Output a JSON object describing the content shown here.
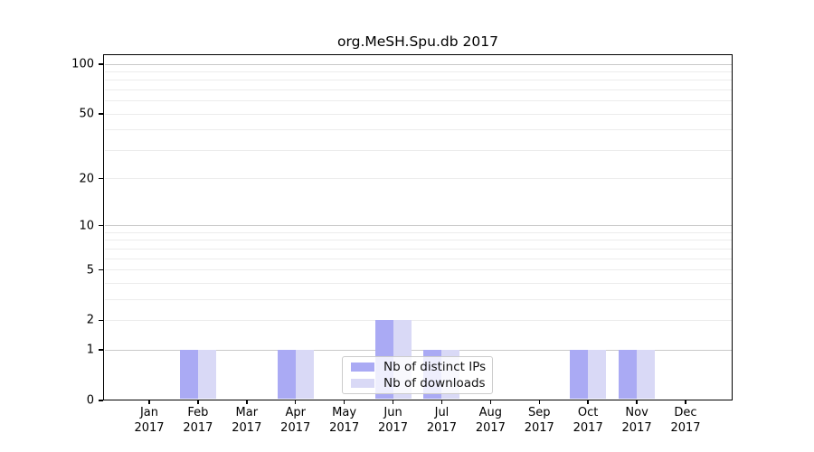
{
  "chart_data": {
    "type": "bar",
    "title": "org.MeSH.Spu.db 2017",
    "categories": [
      "Jan",
      "Feb",
      "Mar",
      "Apr",
      "May",
      "Jun",
      "Jul",
      "Aug",
      "Sep",
      "Oct",
      "Nov",
      "Dec"
    ],
    "x_year_label": "2017",
    "series": [
      {
        "name": "Nb of distinct IPs",
        "color": "#aaaaf4",
        "values": [
          0,
          1,
          0,
          1,
          0,
          2,
          1,
          0,
          0,
          1,
          1,
          0
        ]
      },
      {
        "name": "Nb of downloads",
        "color": "#d9d9f6",
        "values": [
          0,
          1,
          0,
          1,
          0,
          2,
          1,
          0,
          0,
          1,
          1,
          0
        ]
      }
    ],
    "y_axis": {
      "scale": "log1p",
      "tick_values": [
        0,
        1,
        2,
        5,
        10,
        20,
        50,
        100
      ],
      "major_gridlines": [
        1,
        10,
        100
      ],
      "minor_gridlines": [
        2,
        3,
        4,
        5,
        6,
        7,
        8,
        9,
        20,
        30,
        40,
        50,
        60,
        70,
        80,
        90
      ],
      "range": [
        0,
        115
      ]
    },
    "legend": {
      "entries": [
        "Nb of distinct IPs",
        "Nb of downloads"
      ],
      "position": "lower-center-inside"
    },
    "colors": {
      "distinct_ips": "#aaaaf4",
      "downloads": "#d9d9f6",
      "major_grid": "#c9c9c9",
      "minor_grid": "#ececec",
      "axis": "#000000",
      "background": "#ffffff"
    }
  }
}
